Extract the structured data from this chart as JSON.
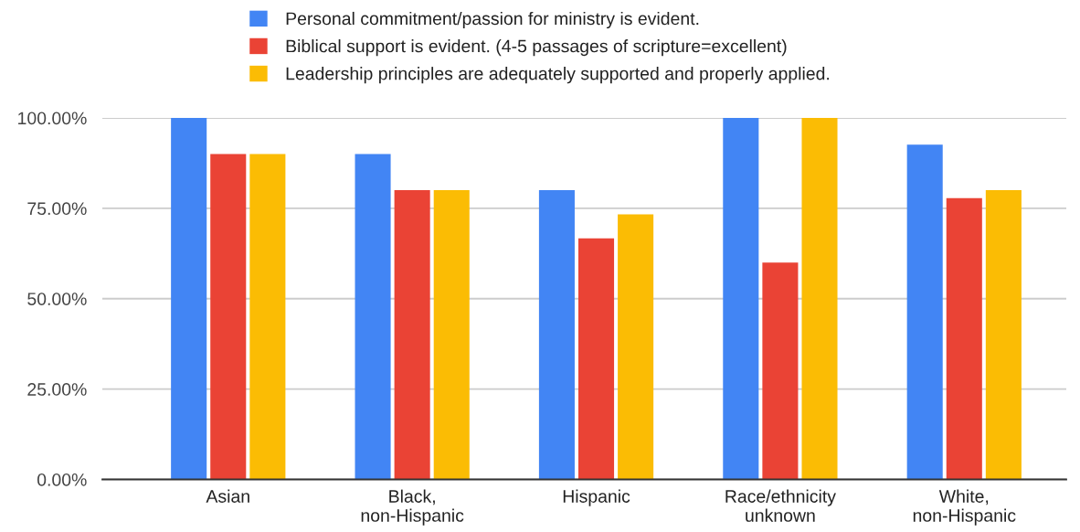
{
  "chart_data": {
    "type": "bar",
    "categories": [
      "Asian",
      "Black,\nnon-Hispanic",
      "Hispanic",
      "Race/ethnicity\nunknown",
      "White,\nnon-Hispanic"
    ],
    "series": [
      {
        "name": "Personal commitment/passion for ministry is evident.",
        "color": "#4285f4",
        "values": [
          100,
          90,
          80,
          100,
          92.6
        ]
      },
      {
        "name": "Biblical support is evident. (4-5 passages of scripture=excellent)",
        "color": "#ea4335",
        "values": [
          90,
          80,
          66.7,
          60,
          77.8
        ]
      },
      {
        "name": "Leadership principles are adequately supported and properly applied.",
        "color": "#fbbc04",
        "values": [
          90,
          80,
          73.3,
          100,
          80
        ]
      }
    ],
    "ylim": [
      0,
      100
    ],
    "yticks": [
      {
        "value": 0,
        "label": "0.00%"
      },
      {
        "value": 25,
        "label": "25.00%"
      },
      {
        "value": 50,
        "label": "50.00%"
      },
      {
        "value": 75,
        "label": "75.00%"
      },
      {
        "value": 100,
        "label": "100.00%"
      }
    ],
    "grid": "y",
    "legend": "top"
  }
}
